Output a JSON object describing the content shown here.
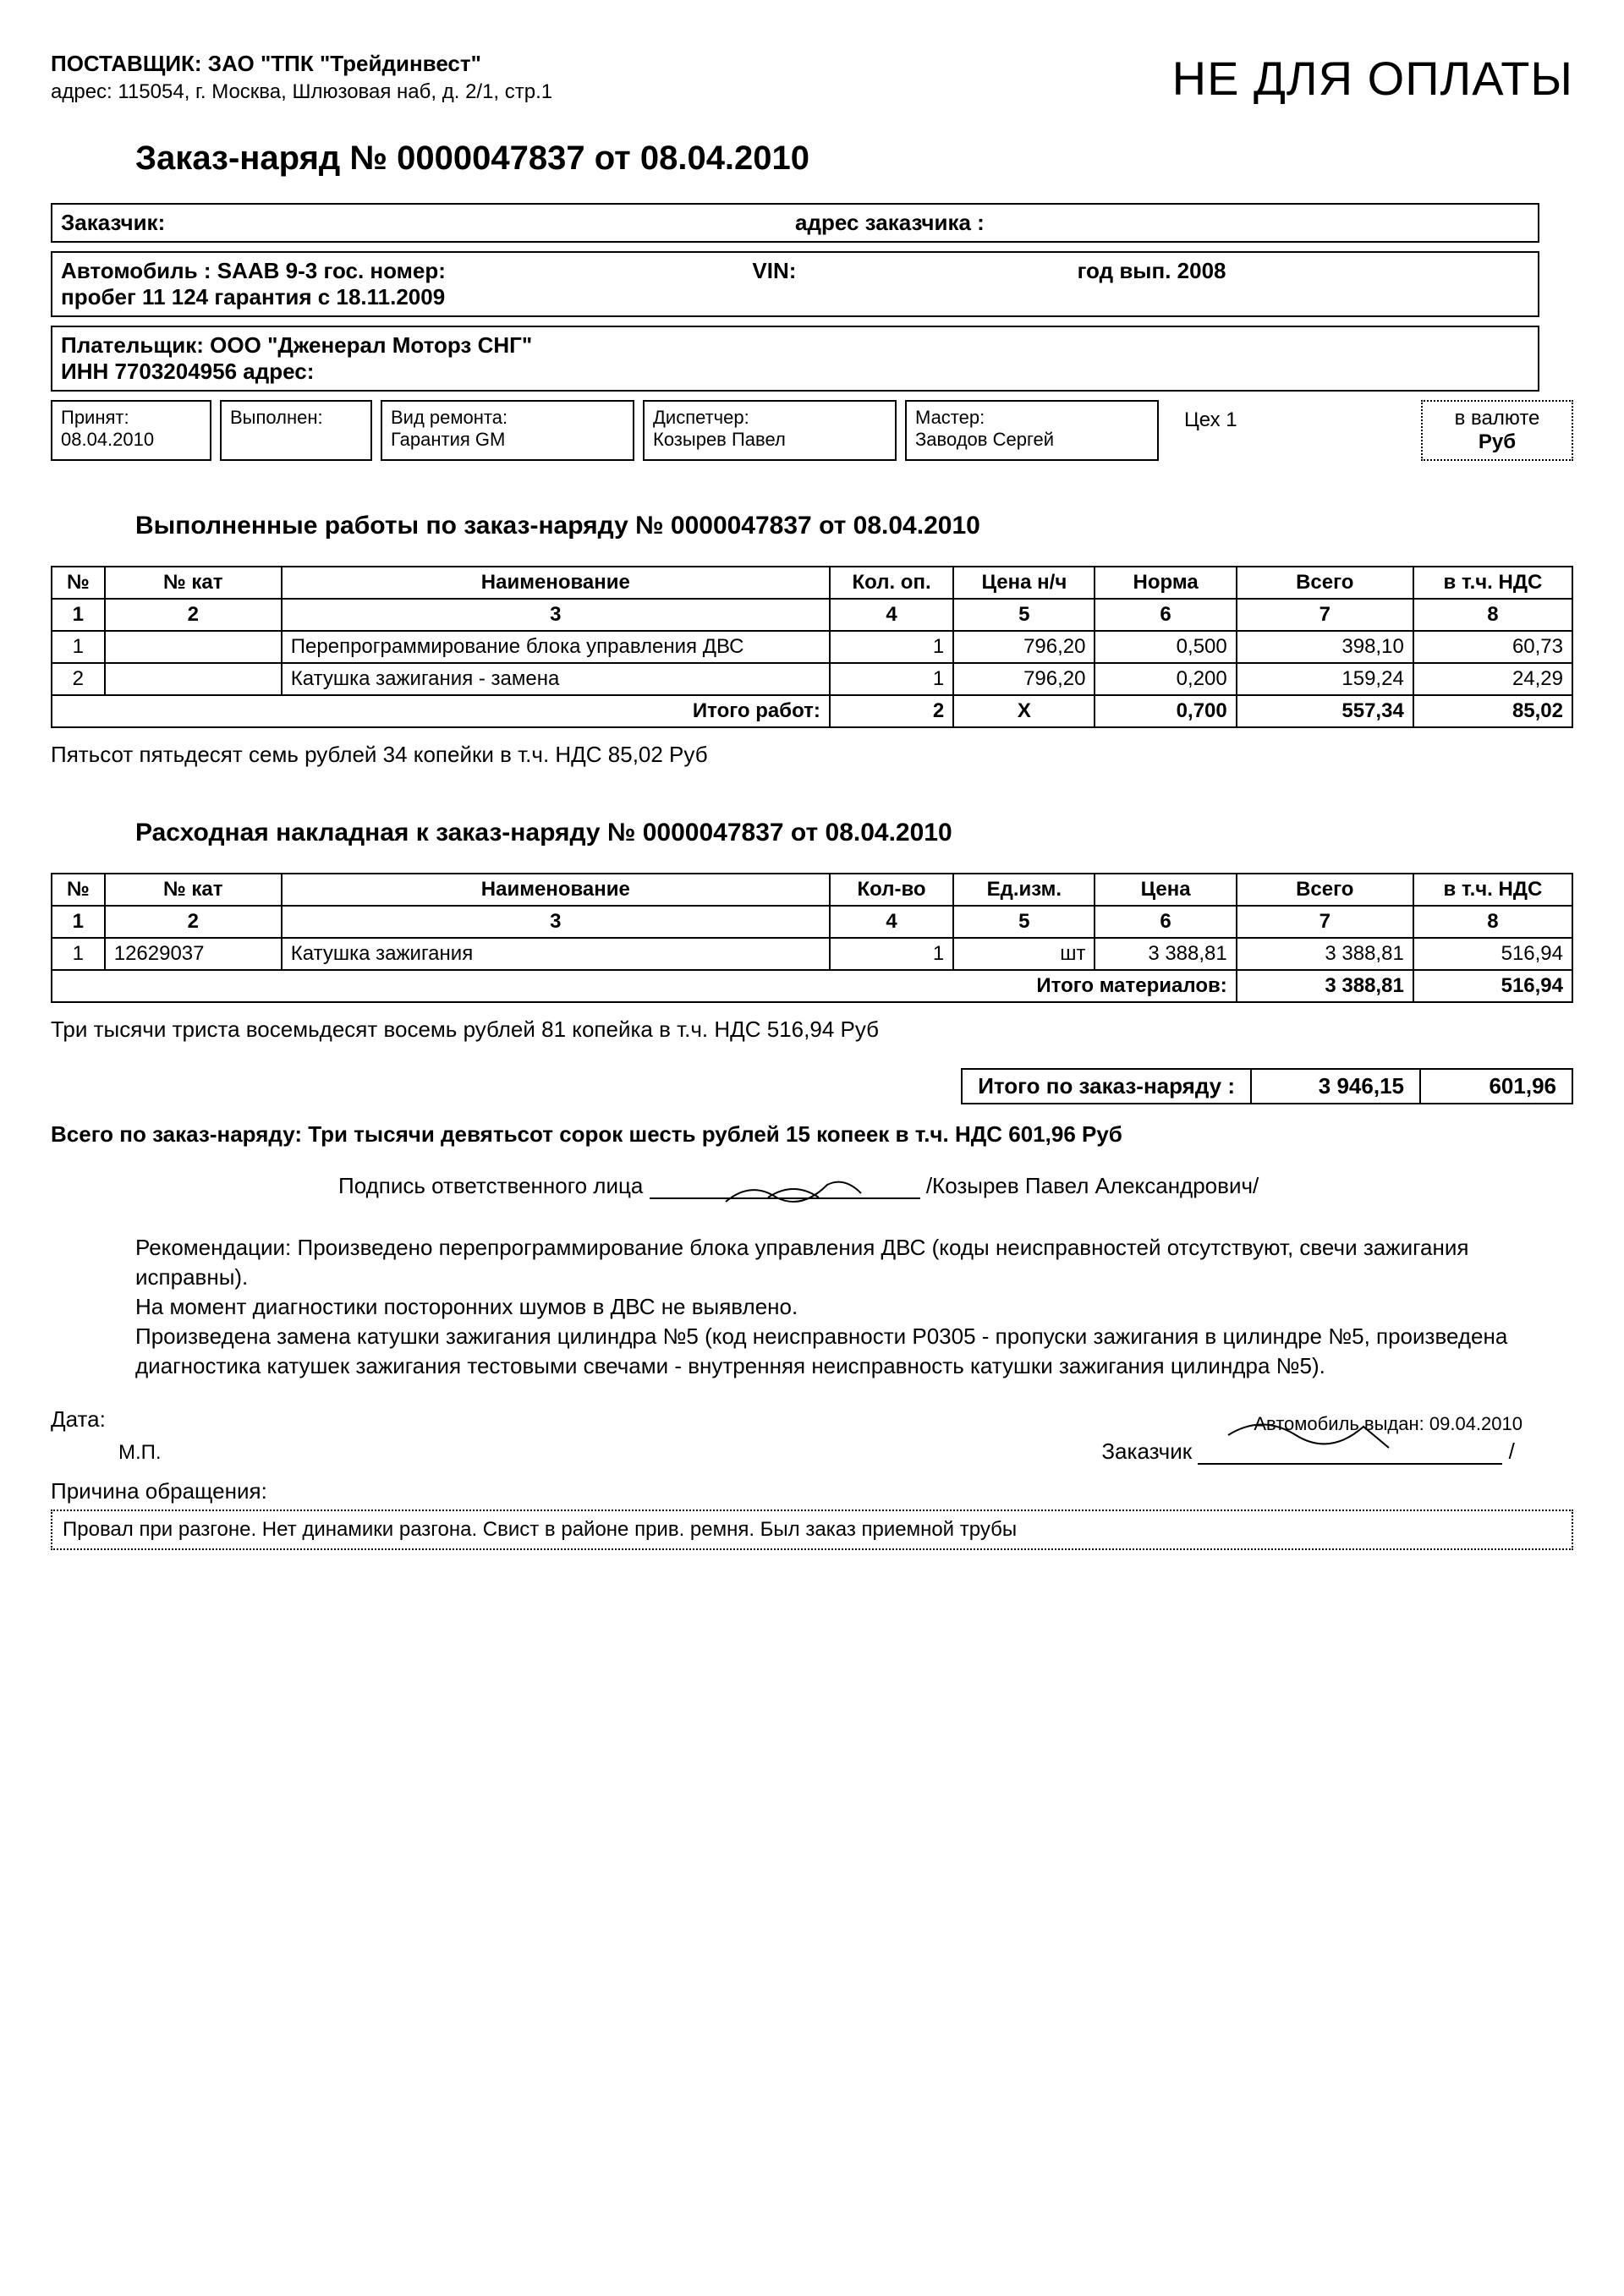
{
  "supplier": {
    "label": "ПОСТАВЩИК:",
    "name": "ЗАО \"ТПК \"Трейдинвест\"",
    "address_label": "адрес:",
    "address": "115054, г. Москва, Шлюзовая наб, д. 2/1, стр.1"
  },
  "watermark": "НЕ ДЛЯ ОПЛАТЫ",
  "doc_title": "Заказ-наряд № 0000047837 от 08.04.2010",
  "customer": {
    "label": "Заказчик:",
    "addr_label": "адрес заказчика :"
  },
  "vehicle": {
    "line1a": "Автомобиль : SAAB 9-3  гос. номер:",
    "vin_label": "VIN:",
    "year_label": "год вып. 2008",
    "line2": "пробег 11 124  гарантия с 18.11.2009"
  },
  "payer": {
    "line1": "Плательщик:  ООО \"Дженерал Моторз СНГ\"",
    "line2": "ИНН 7703204956   адрес:"
  },
  "status": {
    "accepted_label": "Принят:",
    "accepted_val": "08.04.2010",
    "done_label": "Выполнен:",
    "done_val": "",
    "repair_label": "Вид ремонта:",
    "repair_val": "Гарантия GM",
    "dispatcher_label": "Диспетчер:",
    "dispatcher_val": "Козырев Павел",
    "master_label": "Мастер:",
    "master_val": "Заводов Сергей",
    "workshop": "Цех 1",
    "currency_label": "в валюте",
    "currency_val": "Руб"
  },
  "works": {
    "title": "Выполненные работы по заказ-наряду №  0000047837 от 08.04.2010",
    "headers": [
      "№",
      "№ кат",
      "Наименование",
      "Кол. оп.",
      "Цена н/ч",
      "Норма",
      "Всего",
      "в т.ч. НДС"
    ],
    "colnums": [
      "1",
      "2",
      "3",
      "4",
      "5",
      "6",
      "7",
      "8"
    ],
    "rows": [
      {
        "n": "1",
        "cat": "",
        "name": "Перепрограммирование блока управления ДВС",
        "qty": "1",
        "price": "796,20",
        "norm": "0,500",
        "total": "398,10",
        "vat": "60,73"
      },
      {
        "n": "2",
        "cat": "",
        "name": "Катушка зажигания - замена",
        "qty": "1",
        "price": "796,20",
        "norm": "0,200",
        "total": "159,24",
        "vat": "24,29"
      }
    ],
    "totals": {
      "label": "Итого работ:",
      "qty": "2",
      "price": "X",
      "norm": "0,700",
      "total": "557,34",
      "vat": "85,02"
    },
    "words": "Пятьсот пятьдесят семь рублей 34 копейки в т.ч. НДС 85,02 Руб"
  },
  "materials": {
    "title": "Расходная накладная к заказ-наряду №  0000047837 от 08.04.2010",
    "headers": [
      "№",
      "№ кат",
      "Наименование",
      "Кол-во",
      "Ед.изм.",
      "Цена",
      "Всего",
      "в т.ч. НДС"
    ],
    "colnums": [
      "1",
      "2",
      "3",
      "4",
      "5",
      "6",
      "7",
      "8"
    ],
    "rows": [
      {
        "n": "1",
        "cat": "12629037",
        "name": "Катушка зажигания",
        "qty": "1",
        "unit": "шт",
        "price": "3 388,81",
        "total": "3 388,81",
        "vat": "516,94"
      }
    ],
    "totals": {
      "label": "Итого материалов:",
      "total": "3 388,81",
      "vat": "516,94"
    },
    "words": "Три тысячи триста восемьдесят восемь рублей 81 копейка в т.ч. НДС 516,94 Руб"
  },
  "grand": {
    "label": "Итого по заказ-наряду :",
    "total": "3 946,15",
    "vat": "601,96",
    "summary": "Всего по заказ-наряду: Три тысячи девятьсот сорок шесть рублей 15 копеек в т.ч. НДС 601,96 Руб"
  },
  "signature": {
    "label": "Подпись ответственного лица",
    "name": "/Козырев Павел Александрович/"
  },
  "recommendations": {
    "label": "Рекомендации:",
    "text1": "Произведено перепрограммирование блока управления ДВС (коды неисправностей отсутствуют, свечи зажигания исправны).",
    "text2": "На момент диагностики посторонних шумов в ДВС не выявлено.",
    "text3": "Произведена замена катушки зажигания цилиндра №5 (код неисправности P0305 - пропуски зажигания в цилиндре №5, произведена диагностика катушек зажигания тестовыми свечами - внутренняя неисправность катушки зажигания цилиндра №5)."
  },
  "footer": {
    "date_label": "Дата:",
    "mp": "М.П.",
    "issued": "Автомобиль выдан: 09.04.2010",
    "customer_label": "Заказчик",
    "slash": "/"
  },
  "reason": {
    "label": "Причина обращения:",
    "text": "Провал при разгоне. Нет динамики разгона. Свист в районе прив. ремня. Был заказ приемной трубы"
  },
  "col_widths": {
    "works": [
      "60px",
      "200px",
      "620px",
      "140px",
      "160px",
      "160px",
      "200px",
      "180px"
    ],
    "materials": [
      "60px",
      "200px",
      "620px",
      "140px",
      "160px",
      "160px",
      "200px",
      "180px"
    ]
  }
}
